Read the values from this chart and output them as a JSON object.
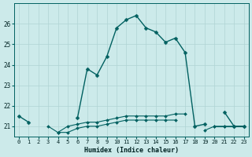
{
  "xlabel": "Humidex (Indice chaleur)",
  "bg_color": "#cceaea",
  "grid_color": "#b0d4d4",
  "line_color": "#006060",
  "ylim": [
    20.5,
    27.0
  ],
  "xlim": [
    -0.5,
    23.5
  ],
  "yticks": [
    21,
    22,
    23,
    24,
    25,
    26
  ],
  "xticks": [
    0,
    1,
    2,
    3,
    4,
    5,
    6,
    7,
    8,
    9,
    10,
    11,
    12,
    13,
    14,
    15,
    16,
    17,
    18,
    19,
    20,
    21,
    22,
    23
  ],
  "series_main": [
    21.5,
    21.2,
    null,
    null,
    null,
    null,
    21.4,
    23.8,
    23.5,
    24.4,
    25.8,
    26.2,
    26.4,
    25.8,
    25.6,
    25.1,
    25.3,
    24.6,
    21.0,
    21.1,
    null,
    21.7,
    21.0,
    21.0
  ],
  "series_mid": [
    null,
    null,
    null,
    21.0,
    20.7,
    21.0,
    21.1,
    21.2,
    21.2,
    21.3,
    21.4,
    21.5,
    21.5,
    21.5,
    21.5,
    21.5,
    21.6,
    21.6,
    null,
    null,
    21.0,
    21.0,
    21.0,
    21.0
  ],
  "series_low": [
    null,
    null,
    null,
    null,
    20.7,
    20.7,
    20.9,
    21.0,
    21.0,
    21.1,
    21.2,
    21.3,
    21.3,
    21.3,
    21.3,
    21.3,
    21.3,
    null,
    null,
    20.8,
    21.0,
    21.0,
    21.0,
    21.0
  ]
}
